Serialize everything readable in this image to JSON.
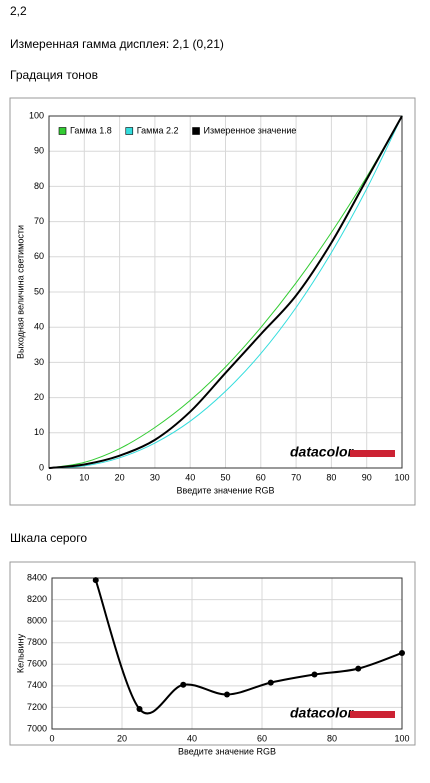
{
  "header": {
    "title": "2,2",
    "gamma": "Измеренная гамма дисплея: 2,1 (0,21)",
    "section1": "Градация тонов",
    "section2": "Шкала серого"
  },
  "chart_data": [
    {
      "type": "line",
      "xlabel": "Введите значение RGB",
      "ylabel": "Выходная величина светимости",
      "logo": "datacolor",
      "xlim": [
        0,
        100
      ],
      "ylim": [
        0,
        100
      ],
      "xticks": [
        0,
        10,
        20,
        30,
        40,
        50,
        60,
        70,
        80,
        90,
        100
      ],
      "yticks": [
        0,
        10,
        20,
        30,
        40,
        50,
        60,
        70,
        80,
        90,
        100
      ],
      "grid": true,
      "legend": "upper left",
      "x": [
        0,
        10,
        20,
        30,
        40,
        50,
        60,
        70,
        80,
        90,
        100
      ],
      "series": [
        {
          "name": "Гамма 1.8",
          "color": "#33cc33",
          "width": 1,
          "values": [
            0,
            1.6,
            5.5,
            11.5,
            19.2,
            28.7,
            39.9,
            52.6,
            66.9,
            82.7,
            100
          ]
        },
        {
          "name": "Гамма 2.2",
          "color": "#33dddd",
          "width": 1,
          "values": [
            0,
            0.6,
            2.9,
            7.1,
            13.3,
            21.8,
            32.5,
            45.6,
            61.2,
            79.3,
            100
          ]
        },
        {
          "name": "Измеренное значение",
          "color": "#000000",
          "width": 2,
          "values": [
            0,
            1,
            3.5,
            8,
            16,
            27,
            38,
            49,
            64,
            82,
            100
          ]
        }
      ]
    },
    {
      "type": "line",
      "xlabel": "Введите значение RGB",
      "ylabel": "Кельвину",
      "logo": "datacolor",
      "xlim": [
        0,
        100
      ],
      "ylim": [
        7000,
        8400
      ],
      "xticks": [
        0,
        20,
        40,
        60,
        80,
        100
      ],
      "yticks": [
        7000,
        7200,
        7400,
        7600,
        7800,
        8000,
        8200,
        8400
      ],
      "grid": true,
      "markers": true,
      "x": [
        12.5,
        25,
        37.5,
        50,
        62.5,
        75,
        87.5,
        100
      ],
      "series": [
        {
          "color": "#000000",
          "width": 2,
          "values": [
            8380,
            7185,
            7410,
            7320,
            7430,
            7505,
            7560,
            7705
          ]
        }
      ]
    }
  ]
}
